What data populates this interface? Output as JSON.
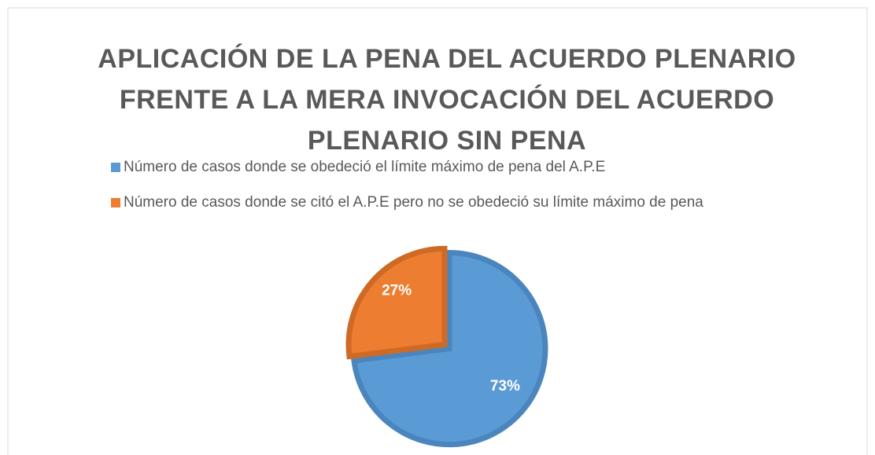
{
  "chart_data": {
    "type": "pie",
    "title": [
      "APLICACIÓN DE LA PENA DEL ACUERDO PLENARIO",
      "FRENTE A LA MERA INVOCACIÓN DEL ACUERDO",
      "PLENARIO SIN PENA"
    ],
    "categories": [
      "Número de casos donde se obedeció el límite máximo de pena del A.P.E",
      "Número de casos donde se citó el A.P.E pero no se obedeció su límite máximo de pena"
    ],
    "values": [
      73,
      27
    ],
    "value_labels": [
      "73%",
      "27%"
    ],
    "colors": [
      "#5b9bd5",
      "#ed7d31"
    ],
    "legend": "top"
  }
}
